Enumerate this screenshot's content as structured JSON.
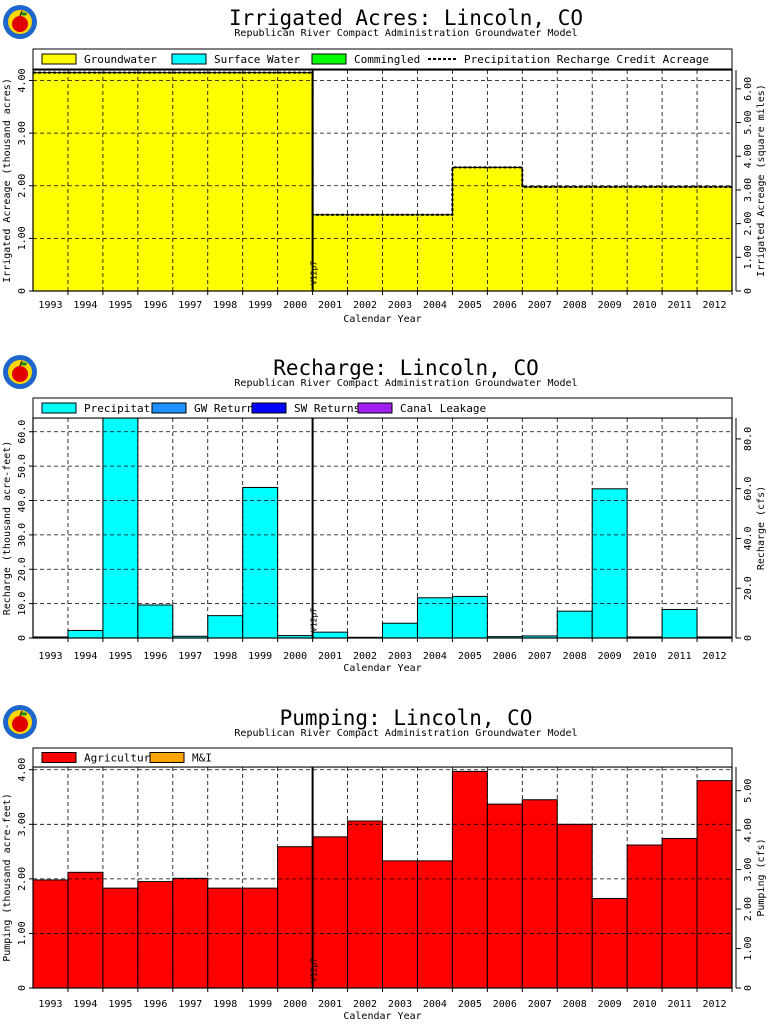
{
  "colors": {
    "groundwater": "#ffff00",
    "surface_water": "#00ffff",
    "commingled": "#00ff00",
    "precipitation": "#00ffff",
    "gw_returns": "#1e90ff",
    "sw_returns": "#0000ff",
    "canal_leakage": "#a020f0",
    "agricultural": "#ff0000",
    "mi": "#ffa500",
    "logo_ring": "#1f66cc",
    "logo_fill": "#ffd700",
    "logo_apple": "#e00000"
  },
  "years": [
    "1993",
    "1994",
    "1995",
    "1996",
    "1997",
    "1998",
    "1999",
    "2000",
    "2001",
    "2002",
    "2003",
    "2004",
    "2005",
    "2006",
    "2007",
    "2008",
    "2009",
    "2010",
    "2011",
    "2012"
  ],
  "marker_label": "V12p7",
  "chart_data": [
    {
      "type": "area",
      "title": "Irrigated Acres: Lincoln, CO",
      "subtitle": "Republican River Compact Administration Groundwater Model",
      "xlabel": "Calendar Year",
      "ylabel": "Irrigated Acreage (thousand acres)",
      "ylabel_right": "Irrigated Acreage (square miles)",
      "ylim": [
        0,
        4.2
      ],
      "yticks": [
        0,
        1.0,
        2.0,
        3.0,
        4.0
      ],
      "ytick_labels": [
        "0",
        "1.00",
        "2.00",
        "3.00",
        "4.00"
      ],
      "ylim_right": [
        0,
        6.56
      ],
      "yticks_right": [
        0,
        1.0,
        2.0,
        3.0,
        4.0,
        5.0,
        6.0
      ],
      "ytick_labels_right": [
        "0",
        "1.00",
        "2.00",
        "3.00",
        "4.00",
        "5.00",
        "6.00"
      ],
      "grid": true,
      "legend": [
        "Groundwater",
        "Surface Water",
        "Commingled",
        "Precipitation Recharge Credit Acreage"
      ],
      "series": [
        {
          "name": "Groundwater",
          "values": [
            4.15,
            4.15,
            4.15,
            4.15,
            4.15,
            4.15,
            4.15,
            4.15,
            1.45,
            1.45,
            1.45,
            1.45,
            2.35,
            2.35,
            1.98,
            1.98,
            1.98,
            1.98,
            1.98,
            1.98
          ]
        },
        {
          "name": "Surface Water",
          "values": [
            0,
            0,
            0,
            0,
            0,
            0,
            0,
            0,
            0,
            0,
            0,
            0,
            0,
            0,
            0,
            0,
            0,
            0,
            0,
            0
          ]
        },
        {
          "name": "Commingled",
          "values": [
            0,
            0,
            0,
            0,
            0,
            0,
            0,
            0,
            0,
            0,
            0,
            0,
            0,
            0,
            0,
            0,
            0,
            0,
            0,
            0
          ]
        },
        {
          "name": "Precipitation Recharge Credit Acreage",
          "values": [
            4.15,
            4.15,
            4.15,
            4.15,
            4.15,
            4.15,
            4.15,
            4.15,
            1.45,
            1.45,
            1.45,
            1.45,
            2.35,
            2.35,
            1.98,
            1.98,
            1.98,
            1.98,
            1.98,
            1.98
          ]
        }
      ]
    },
    {
      "type": "bar",
      "title": "Recharge: Lincoln, CO",
      "subtitle": "Republican River Compact Administration Groundwater Model",
      "xlabel": "Calendar Year",
      "ylabel": "Recharge (thousand acre-feet)",
      "ylabel_right": "Recharge (cfs)",
      "ylim": [
        0,
        64
      ],
      "yticks": [
        0,
        10,
        20,
        30,
        40,
        50,
        60
      ],
      "ytick_labels": [
        "0",
        "10.0",
        "20.0",
        "30.0",
        "40.0",
        "50.0",
        "60.0"
      ],
      "ylim_right": [
        0,
        88.4
      ],
      "yticks_right": [
        0,
        20,
        40,
        60,
        80
      ],
      "ytick_labels_right": [
        "0",
        "20.0",
        "40.0",
        "60.0",
        "80.0"
      ],
      "grid": true,
      "legend": [
        "Precipitation",
        "GW Returns",
        "SW Returns",
        "Canal Leakage"
      ],
      "series": [
        {
          "name": "Precipitation",
          "values": [
            0.3,
            2.2,
            64.2,
            9.6,
            0.5,
            6.5,
            43.8,
            0.7,
            1.7,
            0.2,
            4.3,
            11.7,
            12.1,
            0.4,
            0.6,
            7.8,
            43.4,
            0.3,
            8.3,
            0.3
          ]
        },
        {
          "name": "GW Returns",
          "values": [
            0,
            0,
            0,
            0,
            0,
            0,
            0,
            0,
            0,
            0,
            0,
            0,
            0,
            0,
            0,
            0,
            0,
            0,
            0,
            0
          ]
        },
        {
          "name": "SW Returns",
          "values": [
            0,
            0,
            0,
            0,
            0,
            0,
            0,
            0,
            0,
            0,
            0,
            0,
            0,
            0,
            0,
            0,
            0,
            0,
            0,
            0
          ]
        },
        {
          "name": "Canal Leakage",
          "values": [
            0,
            0,
            0,
            0,
            0,
            0,
            0,
            0,
            0,
            0,
            0,
            0,
            0,
            0,
            0,
            0,
            0,
            0,
            0,
            0
          ]
        }
      ]
    },
    {
      "type": "bar",
      "title": "Pumping: Lincoln, CO",
      "subtitle": "Republican River Compact Administration Groundwater Model",
      "xlabel": "Calendar Year",
      "ylabel": "Pumping (thousand acre-feet)",
      "ylabel_right": "Pumping (cfs)",
      "ylim": [
        0,
        4.05
      ],
      "yticks": [
        0,
        1.0,
        2.0,
        3.0,
        4.0
      ],
      "ytick_labels": [
        "0",
        "1.00",
        "2.00",
        "3.00",
        "4.00"
      ],
      "ylim_right": [
        0,
        5.6
      ],
      "yticks_right": [
        0,
        1.0,
        2.0,
        3.0,
        4.0,
        5.0
      ],
      "ytick_labels_right": [
        "0",
        "1.00",
        "2.00",
        "3.00",
        "4.00",
        "5.00"
      ],
      "grid": true,
      "legend": [
        "Agricultural",
        "M&I"
      ],
      "series": [
        {
          "name": "Agricultural",
          "values": [
            1.98,
            2.12,
            1.83,
            1.95,
            2.01,
            1.83,
            1.83,
            2.59,
            2.77,
            3.06,
            2.33,
            2.33,
            3.97,
            3.37,
            3.45,
            3.0,
            1.64,
            2.62,
            2.74,
            3.8
          ]
        },
        {
          "name": "M&I",
          "values": [
            0,
            0,
            0,
            0,
            0,
            0,
            0,
            0,
            0,
            0,
            0,
            0,
            0,
            0,
            0,
            0,
            0,
            0,
            0,
            0
          ]
        }
      ]
    }
  ]
}
